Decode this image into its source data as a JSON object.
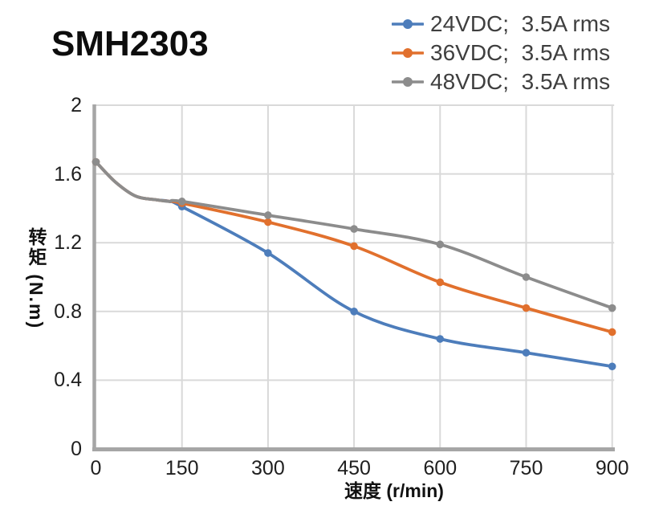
{
  "chart_data": {
    "type": "line",
    "title": "SMH2303",
    "xlabel": "速度 (r/min)",
    "ylabel": "转矩 (N.m)",
    "xlim": [
      0,
      900
    ],
    "ylim": [
      0,
      2
    ],
    "grid": true,
    "legend_position": "top-right",
    "x": [
      0,
      150,
      300,
      450,
      600,
      750,
      900
    ],
    "xticks": [
      "0",
      "150",
      "300",
      "450",
      "600",
      "750",
      "900"
    ],
    "yticks": [
      "2",
      "1.6",
      "1.2",
      "0.8",
      "0.4",
      "0"
    ],
    "ytick_values": [
      2,
      1.6,
      1.2,
      0.8,
      0.4,
      0
    ],
    "series": [
      {
        "name": "24VDC;  3.5A rms",
        "color": "#4d7dbb",
        "values": [
          1.67,
          1.41,
          1.14,
          0.8,
          0.64,
          0.56,
          0.48
        ]
      },
      {
        "name": "36VDC;  3.5A rms",
        "color": "#e1702d",
        "values": [
          1.67,
          1.43,
          1.32,
          1.18,
          0.97,
          0.82,
          0.68
        ]
      },
      {
        "name": "48VDC;  3.5A rms",
        "color": "#8c8c8c",
        "values": [
          1.67,
          1.44,
          1.36,
          1.28,
          1.19,
          1.0,
          0.82
        ]
      }
    ],
    "smoothing_head": {
      "x": [
        0,
        35,
        70,
        105,
        128
      ],
      "y": [
        1.67,
        1.55,
        1.47,
        1.45,
        1.44
      ]
    },
    "colors": {
      "grid": "#d9d9d9",
      "axis": "#a6a6a6",
      "tick_text": "#1f1f1f",
      "legend_text": "#3f3f3f",
      "title_text": "#0d0d0d"
    }
  }
}
